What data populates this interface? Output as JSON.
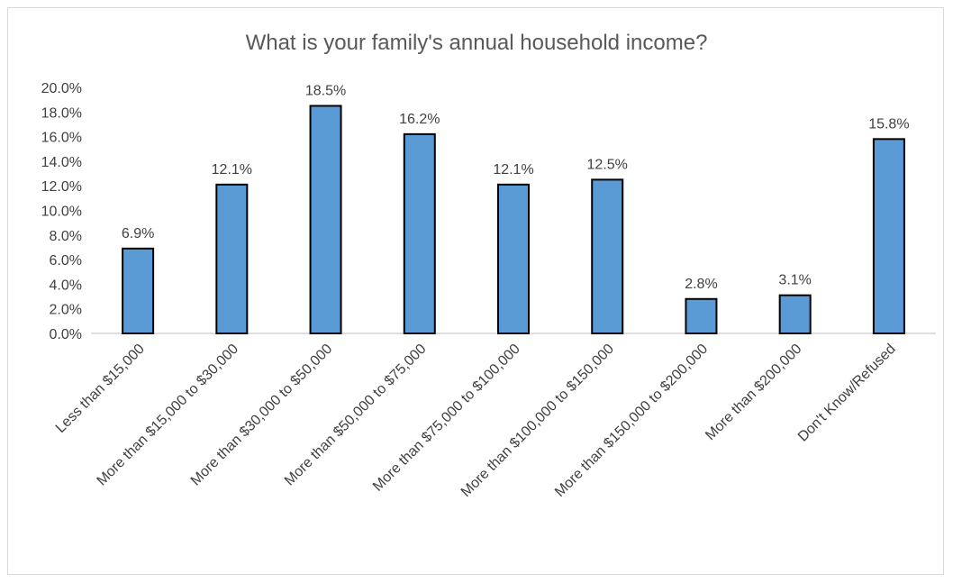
{
  "chart_data": {
    "type": "bar",
    "title": "What is your family's annual household income?",
    "categories": [
      "Less than $15,000",
      "More than $15,000 to $30,000",
      "More than $30,000 to $50,000",
      "More than $50,000 to $75,000",
      "More than $75,000 to $100,000",
      "More than $100,000 to $150,000",
      "More than $150,000 to $200,000",
      "More than $200,000",
      "Don't Know/Refused"
    ],
    "values": [
      6.9,
      12.1,
      18.5,
      16.2,
      12.1,
      12.5,
      2.8,
      3.1,
      15.8
    ],
    "data_labels": [
      "6.9%",
      "12.1%",
      "18.5%",
      "16.2%",
      "12.1%",
      "12.5%",
      "2.8%",
      "3.1%",
      "15.8%"
    ],
    "y_ticks": [
      "0.0%",
      "2.0%",
      "4.0%",
      "6.0%",
      "8.0%",
      "10.0%",
      "12.0%",
      "14.0%",
      "16.0%",
      "18.0%",
      "20.0%"
    ],
    "ylim": [
      0,
      20
    ],
    "xlabel": "",
    "ylabel": "",
    "grid": false,
    "legend": "none",
    "colors": {
      "bar_fill": "#5b9bd5",
      "bar_stroke": "#000000",
      "axis": "#bfbfbf",
      "text": "#404040",
      "title": "#595959"
    }
  }
}
